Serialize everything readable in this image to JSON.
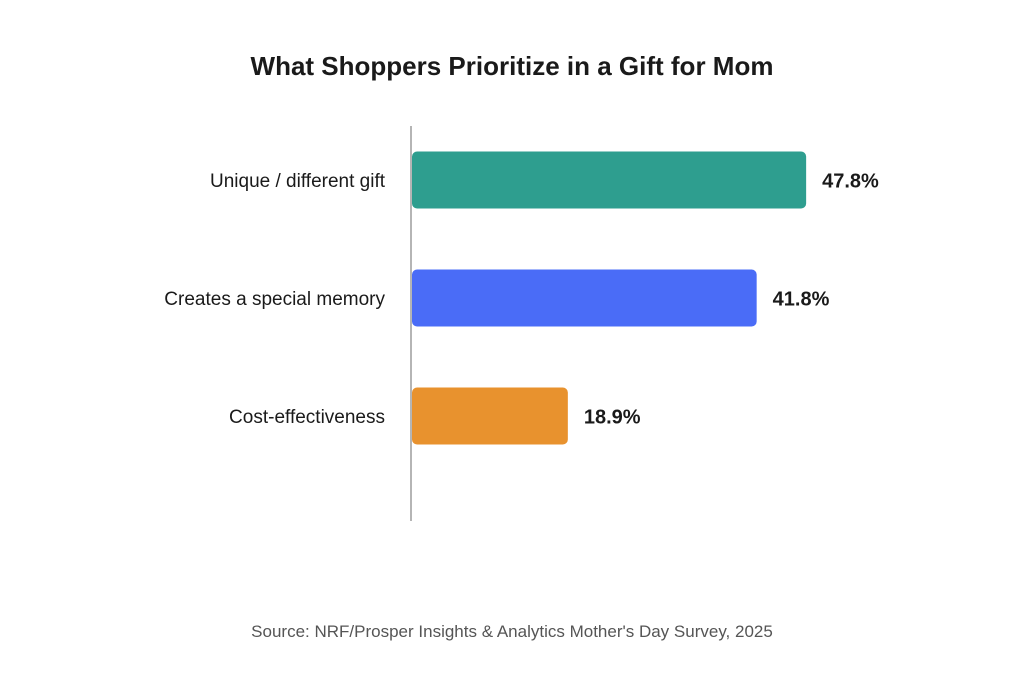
{
  "chart_data": {
    "type": "bar",
    "orientation": "horizontal",
    "title": "What Shoppers Prioritize in a Gift for Mom",
    "categories": [
      "Unique / different gift",
      "Creates a special memory",
      "Cost-effectiveness"
    ],
    "values": [
      47.8,
      41.8,
      18.9
    ],
    "value_labels": [
      "47.8%",
      "41.8%",
      "18.9%"
    ],
    "colors": [
      "#2e9e8f",
      "#4a6cf7",
      "#e8922e"
    ],
    "unit": "%",
    "xlim": [
      0,
      57
    ],
    "grid": false,
    "legend": "none",
    "source": "Source: NRF/Prosper Insights & Analytics Mother's Day Survey, 2025"
  }
}
